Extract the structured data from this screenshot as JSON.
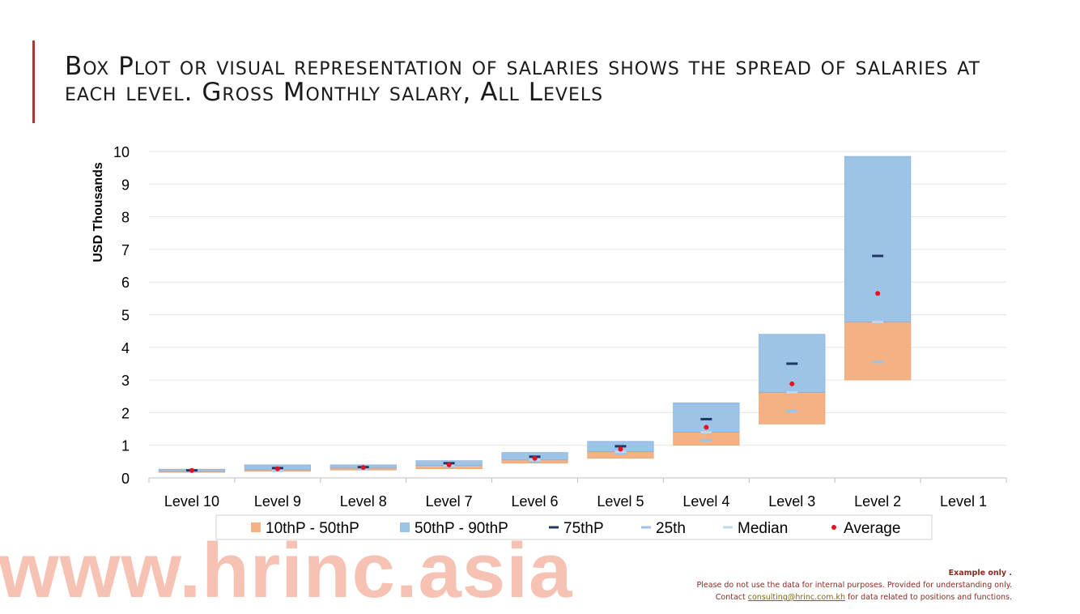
{
  "title": "Box Plot or visual representation of salaries shows the spread of salaries at each level.  Gross Monthly salary, All Levels",
  "watermark": "www.hrinc.asia",
  "note": {
    "example": "Example only .",
    "line1": "Please do not use the data for internal purposes.  Provided for understanding only.",
    "contact_prefix": "Contact",
    "email": "consulting@hrinc.com.kh",
    "contact_suffix": "for data related to positions and functions."
  },
  "colors": {
    "accent": "#a83a32",
    "p10_50": "#f4b183",
    "p50_90": "#9dc3e6",
    "p75": "#1f3864",
    "p25": "#9dc3e6",
    "median": "#bdd7ee",
    "average": "#e8101e",
    "watermark": "#f6c2b3"
  },
  "chart_data": {
    "type": "box",
    "ylabel": "USD Thousands",
    "ylim": [
      0,
      10
    ],
    "yticks": [
      0,
      1,
      2,
      3,
      4,
      5,
      6,
      7,
      8,
      9,
      10
    ],
    "grid": true,
    "legend_placement": "bottom",
    "categories": [
      "Level 10",
      "Level 9",
      "Level 8",
      "Level 7",
      "Level 6",
      "Level 5",
      "Level 4",
      "Level 3",
      "Level 2",
      "Level 1"
    ],
    "legend": [
      "10thP - 50thP",
      "50thP - 90thP",
      "75thP",
      "25th",
      "Median",
      "Average"
    ],
    "p10": [
      0.17,
      0.2,
      0.24,
      0.28,
      0.45,
      0.6,
      1.0,
      1.65,
      3.0,
      null
    ],
    "median": [
      0.2,
      0.25,
      0.3,
      0.38,
      0.55,
      0.8,
      1.4,
      2.62,
      4.78,
      null
    ],
    "p90": [
      0.27,
      0.4,
      0.4,
      0.53,
      0.78,
      1.12,
      2.3,
      4.4,
      9.85,
      null
    ],
    "p25": [
      0.19,
      0.22,
      0.27,
      0.33,
      0.5,
      0.75,
      1.15,
      2.05,
      3.55,
      null
    ],
    "p75": [
      0.23,
      0.3,
      0.33,
      0.45,
      0.65,
      0.97,
      1.8,
      3.5,
      6.8,
      null
    ],
    "average": [
      0.23,
      0.28,
      0.32,
      0.4,
      0.6,
      0.88,
      1.55,
      2.88,
      5.65,
      null
    ]
  }
}
